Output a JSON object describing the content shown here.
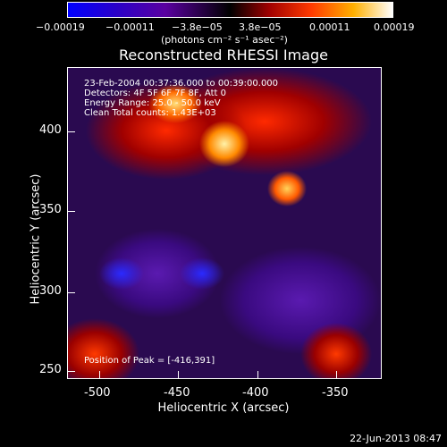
{
  "colorbar": {
    "ticks": [
      "−0.00019",
      "−0.00011",
      "−3.8e−05",
      "3.8e−05",
      "0.00011",
      "0.00019"
    ],
    "units": "(photons cm⁻² s⁻¹ asec⁻²)"
  },
  "title": "Reconstructed RHESSI Image",
  "info": {
    "line1": "23-Feb-2004 00:37:36.000 to 00:39:00.000",
    "line2": "Detectors: 4F 5F 6F 7F 8F, Att 0",
    "line3": "Energy Range: 25.0 - 50.0 keV",
    "line4": "Clean    Total counts: 1.43E+03",
    "peak": "Position of Peak = [-416,391]"
  },
  "axes": {
    "ylabel": "Heliocentric Y (arcsec)",
    "xlabel": "Heliocentric X (arcsec)",
    "yticks": [
      "400",
      "350",
      "300",
      "250"
    ],
    "xticks": [
      "-500",
      "-450",
      "-400",
      "-350"
    ]
  },
  "datestamp": "22-Jun-2013 08:47"
}
